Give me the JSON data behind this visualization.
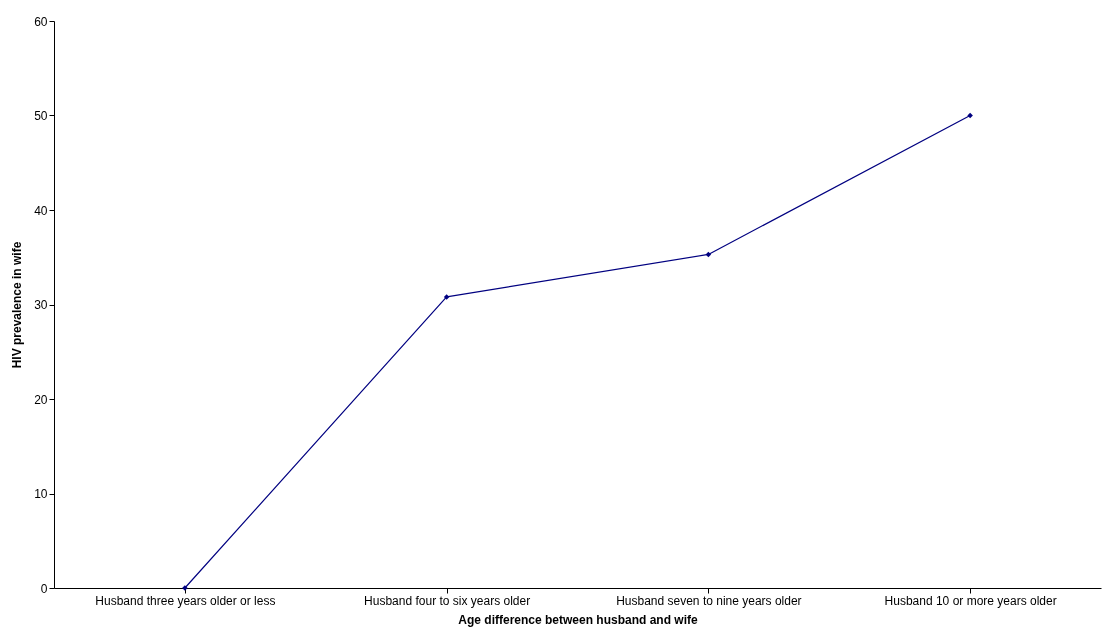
{
  "chart_data": {
    "type": "line",
    "xlabel": "Age difference between husband and wife",
    "ylabel": "HIV prevalence in wife",
    "categories": [
      "Husband three years older or less",
      "Husband four to six years older",
      "Husband seven to nine years older",
      "Husband 10 or more years older"
    ],
    "series": [
      {
        "color": "#000080",
        "values": [
          0,
          30.8,
          35.3,
          50
        ]
      }
    ],
    "ylim": [
      0,
      60
    ],
    "yticks": [
      0,
      10,
      20,
      30,
      40,
      50,
      60
    ],
    "grid": false,
    "marker": "diamond",
    "line_style": "solid"
  }
}
